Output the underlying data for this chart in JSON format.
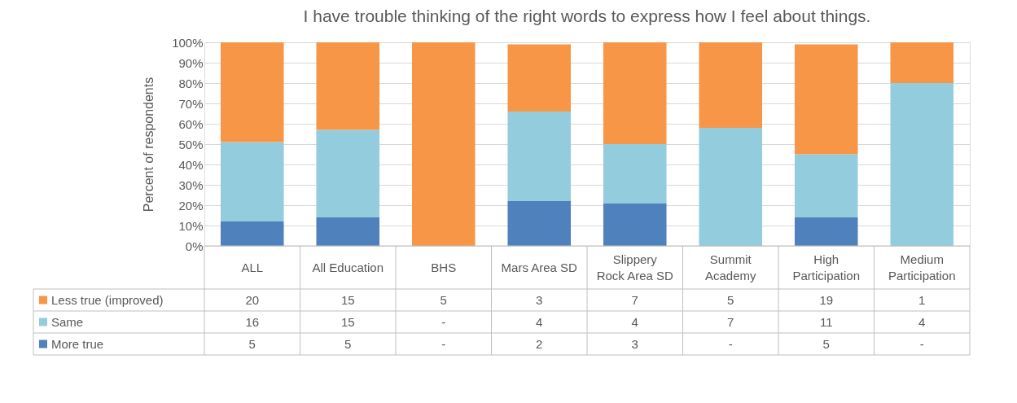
{
  "chart_data": {
    "type": "bar",
    "title": "I have trouble thinking of the right words to express how I feel about things.",
    "ylabel": "Percent of respondents",
    "categories": [
      "ALL",
      "All Education",
      "BHS",
      "Mars Area SD",
      "Slippery Rock Area SD",
      "Summit Academy",
      "High Participation",
      "Medium Participation"
    ],
    "stacked": true,
    "ylim": [
      0,
      100
    ],
    "yticks": [
      {
        "value": 0,
        "label": "0%"
      },
      {
        "value": 10,
        "label": "10%"
      },
      {
        "value": 20,
        "label": "20%"
      },
      {
        "value": 30,
        "label": "30%"
      },
      {
        "value": 40,
        "label": "40%"
      },
      {
        "value": 50,
        "label": "50%"
      },
      {
        "value": 60,
        "label": "60%"
      },
      {
        "value": 70,
        "label": "70%"
      },
      {
        "value": 80,
        "label": "80%"
      },
      {
        "value": 90,
        "label": "90%"
      },
      {
        "value": 100,
        "label": "100%"
      }
    ],
    "grid": "y",
    "legend": "bottom",
    "series": [
      {
        "name": "More true",
        "color": "#4f81bd",
        "values": [
          12,
          14,
          0,
          22,
          21,
          0,
          14,
          0
        ]
      },
      {
        "name": "Same",
        "color": "#93cddd",
        "values": [
          39,
          43,
          0,
          44,
          29,
          58,
          31,
          80
        ]
      },
      {
        "name": "Less true (improved)",
        "color": "#f79646",
        "values": [
          49,
          43,
          100,
          33,
          50,
          42,
          54,
          20
        ]
      }
    ],
    "annotations": [
      "20",
      "15",
      "5",
      "3",
      "7",
      "5",
      "19",
      "1",
      "16",
      "15",
      "-",
      "4",
      "4",
      "7",
      "11",
      "4",
      "5",
      "5",
      "-",
      "2",
      "3",
      "-",
      "5",
      "-"
    ]
  }
}
